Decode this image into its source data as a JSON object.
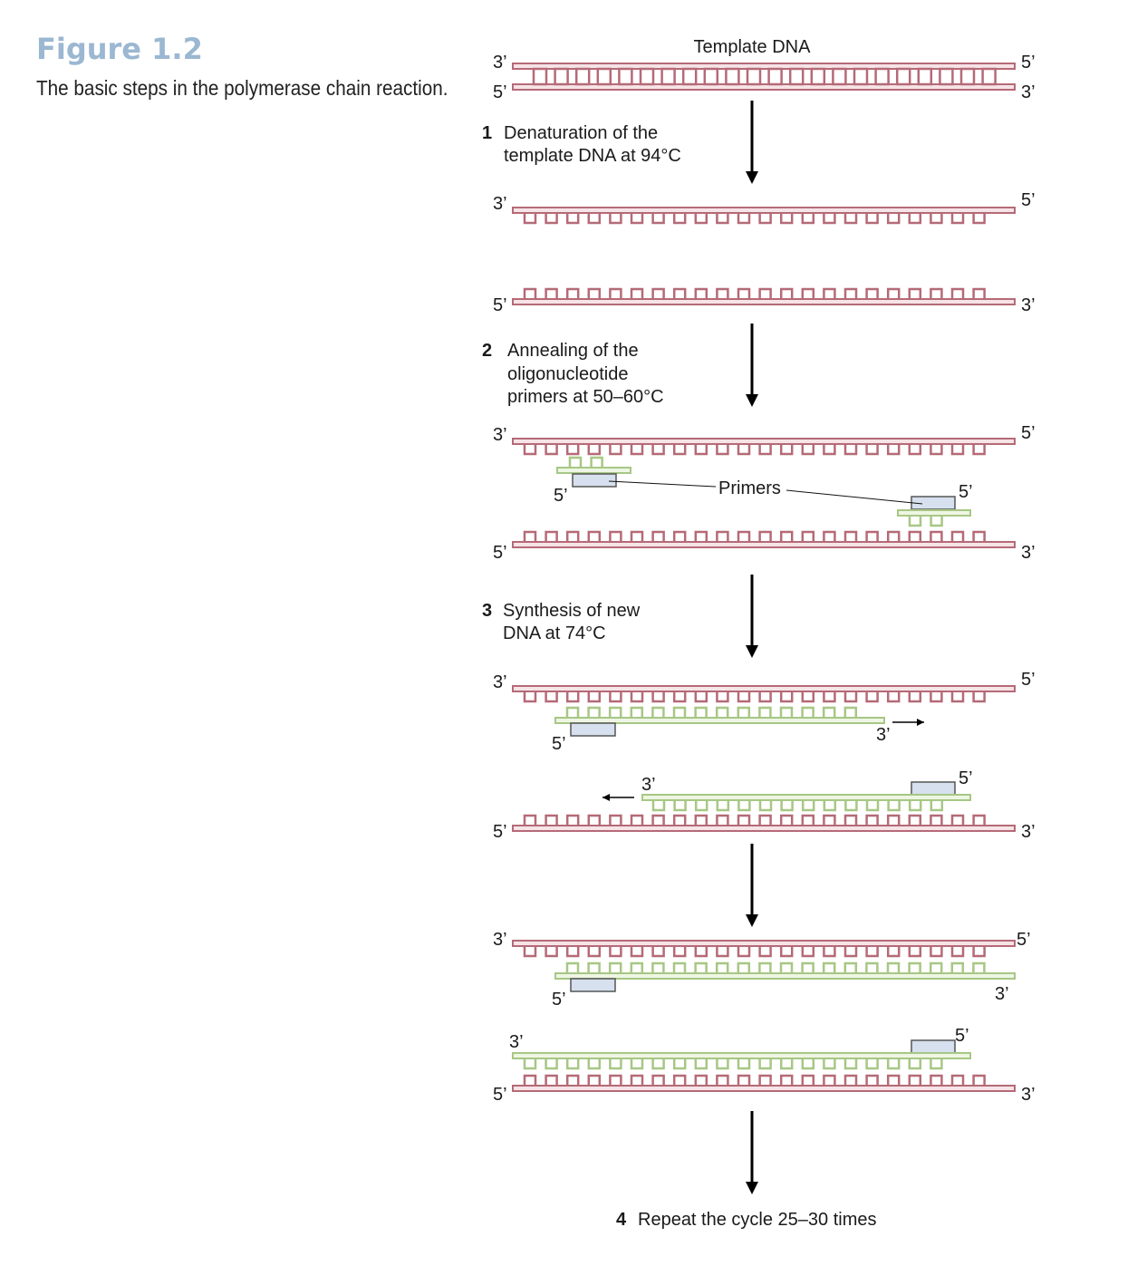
{
  "figure": {
    "title": "Figure 1.2",
    "description": "The basic steps in the polymerase chain reaction.",
    "title_color": "#9bb7d1"
  },
  "colors": {
    "template_strand": "#b56a77",
    "template_fill": "#f6e4e7",
    "new_strand": "#a7c785",
    "new_fill": "#eef6e3",
    "primer_fill": "#d6e0ee",
    "primer_stroke": "#555555",
    "arrow": "#000000"
  },
  "labels": {
    "template_dna": "Template DNA",
    "primers": "Primers",
    "end3": "3’",
    "end5": "5’"
  },
  "steps": [
    {
      "number": "1",
      "lines": [
        "Denaturation of the",
        "template DNA at 94°C"
      ]
    },
    {
      "number": "2",
      "lines": [
        "Annealing of the",
        "oligonucleotide",
        "primers at 50–60°C"
      ]
    },
    {
      "number": "3",
      "lines": [
        "Synthesis of new",
        "DNA at 74°C"
      ]
    },
    {
      "number": "4",
      "lines": [
        "Repeat the cycle 25–30 times"
      ]
    }
  ]
}
